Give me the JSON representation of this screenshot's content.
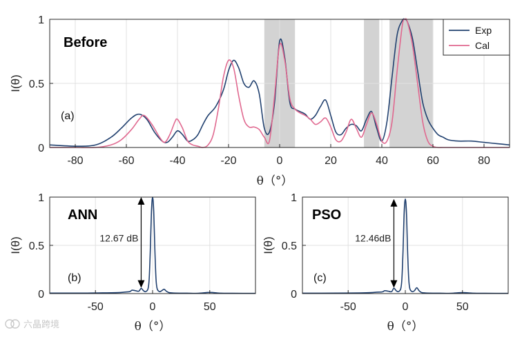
{
  "watermark": {
    "text": "六晶跨境"
  },
  "chart_data": [
    {
      "type": "line",
      "label": "(a)",
      "title": "Before",
      "xlabel": "θ（°）",
      "ylabel": "I(θ)",
      "xlim": [
        -90,
        90
      ],
      "ylim": [
        0,
        1
      ],
      "xticks": [
        "-80",
        "-60",
        "-40",
        "-20",
        "0",
        "20",
        "40",
        "60",
        "80"
      ],
      "yticks": [
        "0",
        "0.5",
        "1"
      ],
      "shaded_ranges": [
        [
          -6,
          6
        ],
        [
          33,
          39
        ],
        [
          43,
          60
        ]
      ],
      "legend": {
        "position": "top-right",
        "entries": [
          "Exp",
          "Cal"
        ]
      },
      "series": [
        {
          "name": "Exp",
          "color": "#1f3f6e",
          "x": [
            -90,
            -80,
            -72,
            -66,
            -62,
            -58,
            -55,
            -52,
            -49,
            -46,
            -44,
            -42,
            -40,
            -38,
            -36,
            -34,
            -32,
            -30,
            -28,
            -25,
            -22,
            -20,
            -18,
            -16,
            -14,
            -12,
            -10,
            -8,
            -6,
            -4,
            -2,
            0,
            2,
            4,
            6,
            8,
            10,
            12,
            14,
            16,
            18,
            20,
            22,
            24,
            26,
            28,
            30,
            32,
            34,
            36,
            38,
            40,
            42,
            44,
            46,
            48,
            49,
            50,
            52,
            54,
            56,
            58,
            60,
            62,
            64,
            66,
            70,
            75,
            80,
            85,
            90
          ],
          "y": [
            0.02,
            0.01,
            0.02,
            0.08,
            0.15,
            0.23,
            0.26,
            0.22,
            0.12,
            0.05,
            0.04,
            0.08,
            0.13,
            0.1,
            0.05,
            0.06,
            0.1,
            0.18,
            0.25,
            0.32,
            0.45,
            0.6,
            0.68,
            0.62,
            0.5,
            0.47,
            0.52,
            0.42,
            0.15,
            0.12,
            0.35,
            0.83,
            0.7,
            0.35,
            0.3,
            0.28,
            0.26,
            0.22,
            0.25,
            0.32,
            0.37,
            0.25,
            0.12,
            0.1,
            0.15,
            0.18,
            0.17,
            0.13,
            0.22,
            0.28,
            0.15,
            0.05,
            0.2,
            0.55,
            0.88,
            0.99,
            1.0,
            0.98,
            0.85,
            0.6,
            0.35,
            0.22,
            0.15,
            0.1,
            0.08,
            0.06,
            0.05,
            0.05,
            0.04,
            0.03,
            0.02
          ]
        },
        {
          "name": "Cal",
          "color": "#e0688f",
          "x": [
            -90,
            -80,
            -72,
            -66,
            -62,
            -58,
            -55,
            -53,
            -50,
            -47,
            -45,
            -43,
            -41,
            -40,
            -38,
            -36,
            -34,
            -32,
            -30,
            -28,
            -26,
            -24,
            -22,
            -20,
            -18,
            -16,
            -14,
            -12,
            -10,
            -8,
            -6,
            -4,
            -2,
            0,
            2,
            4,
            6,
            8,
            10,
            12,
            14,
            16,
            18,
            20,
            22,
            24,
            26,
            28,
            30,
            32,
            34,
            36,
            38,
            40,
            42,
            44,
            46,
            48,
            49,
            50,
            52,
            54,
            56,
            58,
            60,
            62,
            64,
            70,
            80,
            90
          ],
          "y": [
            0.0,
            0.0,
            0.0,
            0.02,
            0.06,
            0.14,
            0.22,
            0.25,
            0.18,
            0.08,
            0.04,
            0.1,
            0.2,
            0.22,
            0.15,
            0.05,
            0.02,
            0.01,
            0.0,
            0.02,
            0.1,
            0.3,
            0.55,
            0.68,
            0.62,
            0.4,
            0.22,
            0.16,
            0.16,
            0.14,
            0.08,
            0.05,
            0.4,
            0.8,
            0.68,
            0.38,
            0.3,
            0.27,
            0.25,
            0.22,
            0.18,
            0.2,
            0.23,
            0.16,
            0.06,
            0.05,
            0.12,
            0.22,
            0.15,
            0.08,
            0.18,
            0.27,
            0.18,
            0.05,
            0.05,
            0.2,
            0.6,
            0.95,
            1.0,
            0.98,
            0.8,
            0.5,
            0.2,
            0.05,
            0.01,
            0.0,
            0.0,
            0.0,
            0.0,
            0.0
          ]
        }
      ]
    },
    {
      "type": "line",
      "label": "(b)",
      "title": "ANN",
      "xlabel": "θ（°）",
      "ylabel": "I(θ)",
      "xlim": [
        -90,
        90
      ],
      "ylim": [
        0,
        1
      ],
      "xticks": [
        "-50",
        "0",
        "50"
      ],
      "yticks": [
        "0",
        "0.5",
        "1"
      ],
      "annotation": "12.67 dB",
      "arrow_theta": -10,
      "arrow_range": [
        0.06,
        1.0
      ],
      "series": [
        {
          "name": "Exp",
          "color": "#1f3f6e",
          "x": [
            -90,
            -60,
            -40,
            -30,
            -25,
            -20,
            -18,
            -15,
            -12,
            -10,
            -8,
            -6,
            -4,
            -3,
            -2,
            -1,
            0,
            1,
            2,
            3,
            4,
            6,
            8,
            10,
            12,
            14,
            16,
            20,
            30,
            40,
            50,
            60,
            70,
            90
          ],
          "y": [
            0.005,
            0.005,
            0.008,
            0.01,
            0.015,
            0.02,
            0.035,
            0.03,
            0.025,
            0.054,
            0.03,
            0.02,
            0.05,
            0.15,
            0.45,
            0.85,
            1.0,
            0.85,
            0.45,
            0.15,
            0.05,
            0.02,
            0.03,
            0.045,
            0.025,
            0.012,
            0.008,
            0.005,
            0.004,
            0.003,
            0.012,
            0.004,
            0.003,
            0.002
          ]
        }
      ]
    },
    {
      "type": "line",
      "label": "(c)",
      "title": "PSO",
      "xlabel": "θ（°）",
      "ylabel": "I(θ)",
      "xlim": [
        -90,
        90
      ],
      "ylim": [
        0,
        1
      ],
      "xticks": [
        "-50",
        "0",
        "50"
      ],
      "yticks": [
        "0",
        "0.5",
        "1"
      ],
      "annotation": "12.46dB",
      "arrow_theta": -10,
      "arrow_range": [
        0.06,
        0.98
      ],
      "series": [
        {
          "name": "Exp",
          "color": "#1f3f6e",
          "x": [
            -90,
            -60,
            -40,
            -30,
            -25,
            -20,
            -18,
            -15,
            -12,
            -10,
            -8,
            -6,
            -4,
            -3,
            -2,
            -1,
            0,
            1,
            2,
            3,
            4,
            6,
            8,
            10,
            12,
            14,
            16,
            20,
            30,
            40,
            50,
            60,
            70,
            90
          ],
          "y": [
            0.004,
            0.005,
            0.007,
            0.01,
            0.015,
            0.018,
            0.03,
            0.025,
            0.02,
            0.056,
            0.03,
            0.02,
            0.05,
            0.15,
            0.44,
            0.84,
            0.98,
            0.84,
            0.44,
            0.15,
            0.05,
            0.02,
            0.03,
            0.06,
            0.03,
            0.012,
            0.008,
            0.005,
            0.004,
            0.003,
            0.01,
            0.004,
            0.003,
            0.002
          ]
        }
      ]
    }
  ]
}
